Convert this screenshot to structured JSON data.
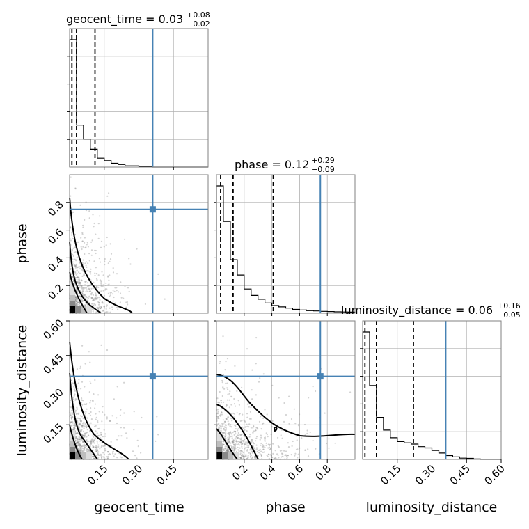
{
  "chart_data": {
    "type": "corner",
    "parameters": [
      "geocent_time",
      "phase",
      "luminosity_distance"
    ],
    "truths": [
      0.36,
      0.75,
      0.36
    ],
    "truth_color": "#4682b4",
    "colors": {
      "truth": "#4682b4",
      "hist": "#000000",
      "quantile": "#000000",
      "grid": "#b0b0b0",
      "scatter": "#808080",
      "contour": "#000000"
    },
    "grid": true,
    "ranges": {
      "geocent_time": [
        0.0,
        0.6
      ],
      "phase": [
        0.0,
        1.0
      ],
      "luminosity_distance": [
        0.0,
        0.6
      ]
    },
    "titles": [
      {
        "param": "geocent_time",
        "label": "geocent_time = 0.03",
        "plus": "+0.08",
        "minus": "−0.02"
      },
      {
        "param": "phase",
        "label": "phase = 0.12",
        "plus": "+0.29",
        "minus": "−0.09"
      },
      {
        "param": "luminosity_distance",
        "label": "luminosity_distance = 0.06",
        "plus": "+0.16",
        "minus": "−0.05"
      }
    ],
    "quantiles": {
      "geocent_time": [
        0.01,
        0.03,
        0.11
      ],
      "phase": [
        0.03,
        0.12,
        0.41
      ],
      "luminosity_distance": [
        0.01,
        0.06,
        0.22
      ]
    },
    "xticks": {
      "geocent_time": [
        "0.15",
        "0.30",
        "0.45"
      ],
      "phase": [
        "0.2",
        "0.4",
        "0.6",
        "0.8"
      ],
      "luminosity_distance": [
        "0.15",
        "0.30",
        "0.45",
        "0.60"
      ]
    },
    "yticks": {
      "phase": [
        "0.2",
        "0.4",
        "0.6",
        "0.8"
      ],
      "luminosity_distance": [
        "0.15",
        "0.30",
        "0.45",
        "0.60"
      ]
    },
    "xlabels": [
      "geocent_time",
      "phase",
      "luminosity_distance"
    ],
    "ylabels": [
      "phase",
      "luminosity_distance"
    ],
    "histograms": {
      "geocent_time": [
        1.0,
        0.33,
        0.22,
        0.14,
        0.07,
        0.05,
        0.03,
        0.02,
        0.01,
        0.01,
        0.005,
        0.003,
        0.0,
        0.0,
        0.0,
        0.0,
        0.0,
        0.0,
        0.0,
        0.0
      ],
      "phase": [
        1.0,
        0.72,
        0.42,
        0.3,
        0.19,
        0.14,
        0.11,
        0.08,
        0.06,
        0.05,
        0.04,
        0.03,
        0.025,
        0.02,
        0.018,
        0.015,
        0.013,
        0.011,
        0.01,
        0.009
      ],
      "luminosity_distance": [
        1.0,
        0.58,
        0.33,
        0.23,
        0.17,
        0.14,
        0.13,
        0.12,
        0.1,
        0.09,
        0.07,
        0.05,
        0.03,
        0.02,
        0.01,
        0.008,
        0.004,
        0.0,
        0.0,
        0.0
      ]
    }
  }
}
